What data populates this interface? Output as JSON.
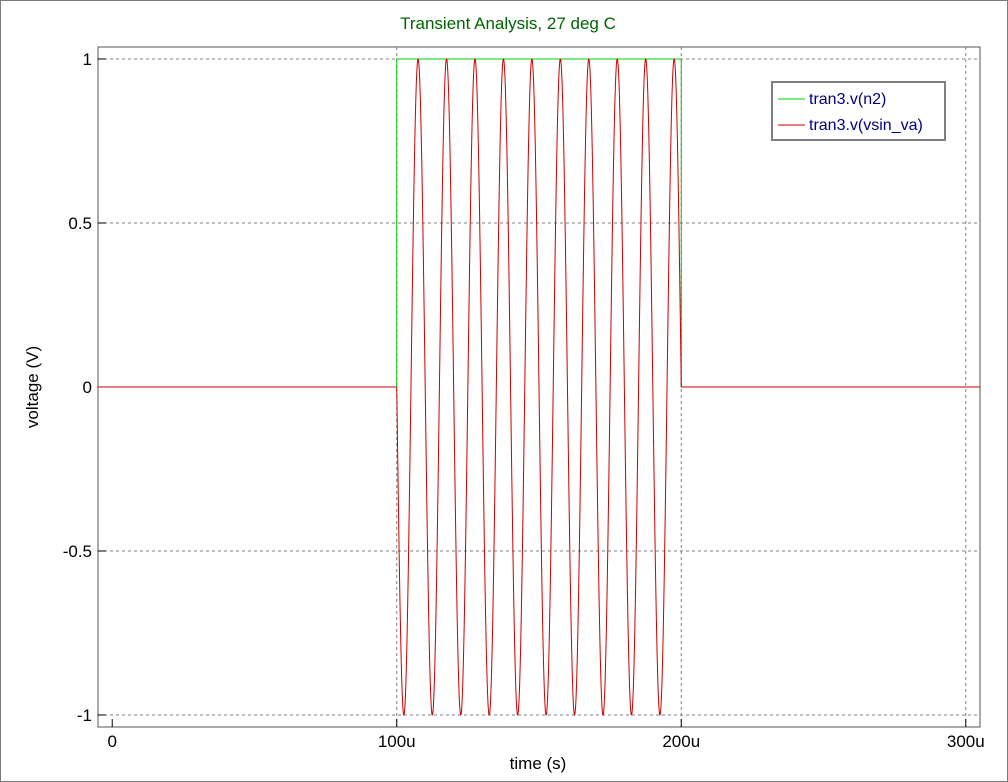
{
  "chart_data": {
    "type": "line",
    "title": "Transient Analysis, 27 deg C",
    "xlabel": "time (s)",
    "ylabel": "voltage (V)",
    "xlim": [
      -5e-06,
      0.000305
    ],
    "ylim": [
      -1,
      1
    ],
    "x_ticks": [
      {
        "value": 0,
        "label": "0"
      },
      {
        "value": 0.0001,
        "label": "100u"
      },
      {
        "value": 0.0002,
        "label": "200u"
      },
      {
        "value": 0.0003,
        "label": "300u"
      }
    ],
    "y_ticks": [
      {
        "value": 1,
        "label": "1"
      },
      {
        "value": 0.5,
        "label": "0.5"
      },
      {
        "value": 0,
        "label": "0"
      },
      {
        "value": -0.5,
        "label": "-0.5"
      },
      {
        "value": -1,
        "label": "-1"
      }
    ],
    "grid": true,
    "legend_position": "top-right",
    "series": [
      {
        "name": "tran3.v(n2)",
        "color": "#00cc00",
        "x": [
          0,
          0.0001,
          0.0001,
          0.0002,
          0.0002,
          0.000305
        ],
        "y": [
          0,
          0,
          1,
          1,
          0,
          0
        ]
      },
      {
        "name": "tran3.v(vsin_va)",
        "color": "#cc0000",
        "waveform": "sine",
        "baseline_before": 0,
        "start": 0.0001,
        "stop": 0.0002,
        "frequency": 100000,
        "amplitude": 1,
        "offset": 0,
        "phase_deg": 180
      }
    ]
  }
}
